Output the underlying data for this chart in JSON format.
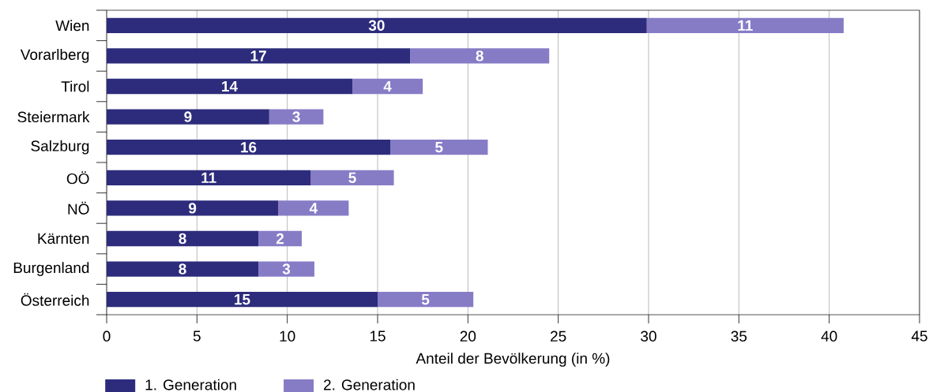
{
  "chart_data": {
    "type": "bar",
    "orientation": "horizontal",
    "stacked": true,
    "categories": [
      "Wien",
      "Vorarlberg",
      "Tirol",
      "Steiermark",
      "Salzburg",
      "OÖ",
      "NÖ",
      "Kärnten",
      "Burgenland",
      "Österreich"
    ],
    "series": [
      {
        "name": "1. Generation",
        "color": "#2d2c7c",
        "values": [
          29.9,
          16.8,
          13.6,
          9.0,
          15.7,
          11.3,
          9.5,
          8.4,
          8.4,
          15.0
        ],
        "value_labels": [
          "30",
          "17",
          "14",
          "9",
          "16",
          "11",
          "9",
          "8",
          "8",
          "15"
        ]
      },
      {
        "name": "2. Generation",
        "color": "#867cc6",
        "values": [
          10.9,
          7.7,
          3.9,
          3.0,
          5.4,
          4.6,
          3.9,
          2.4,
          3.1,
          5.3
        ],
        "value_labels": [
          "11",
          "8",
          "4",
          "3",
          "5",
          "5",
          "4",
          "2",
          "3",
          "5"
        ]
      }
    ],
    "xlim": [
      0,
      45
    ],
    "xticks": [
      0,
      5,
      10,
      15,
      20,
      25,
      30,
      35,
      40,
      45
    ],
    "xlabel": "Anteil der Bevölkerung (in %)",
    "grid": "x",
    "legend": "bottom left"
  }
}
